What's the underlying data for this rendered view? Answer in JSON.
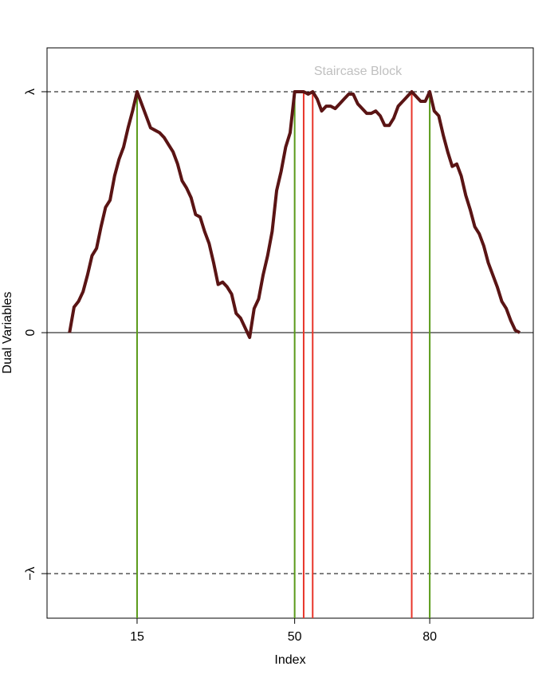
{
  "chart_data": {
    "type": "line",
    "x_label": "Index",
    "y_label": "Dual Variables",
    "annotation": "Staircase Block",
    "x": [
      0,
      1,
      2,
      3,
      4,
      5,
      6,
      7,
      8,
      9,
      10,
      11,
      12,
      13,
      14,
      15,
      16,
      17,
      18,
      19,
      20,
      21,
      22,
      23,
      24,
      25,
      26,
      27,
      28,
      29,
      30,
      31,
      32,
      33,
      34,
      35,
      36,
      37,
      38,
      39,
      40,
      41,
      42,
      43,
      44,
      45,
      46,
      47,
      48,
      49,
      50,
      51,
      52,
      53,
      54,
      55,
      56,
      57,
      58,
      59,
      60,
      61,
      62,
      63,
      64,
      65,
      66,
      67,
      68,
      69,
      70,
      71,
      72,
      73,
      74,
      75,
      76,
      77,
      78,
      79,
      80,
      81,
      82,
      83,
      84,
      85,
      86,
      87,
      88,
      89,
      90,
      91,
      92,
      93,
      94,
      95,
      96,
      97,
      98,
      99,
      100
    ],
    "series": [
      {
        "color": "#5a1414",
        "values": [
          0,
          0.106,
          0.13,
          0.17,
          0.24,
          0.32,
          0.35,
          0.44,
          0.52,
          0.55,
          0.65,
          0.72,
          0.77,
          0.85,
          0.92,
          1,
          0.95,
          0.9,
          0.85,
          0.84,
          0.83,
          0.81,
          0.78,
          0.75,
          0.7,
          0.63,
          0.6,
          0.56,
          0.49,
          0.48,
          0.42,
          0.37,
          0.29,
          0.2,
          0.21,
          0.19,
          0.16,
          0.08,
          0.06,
          0.02,
          -0.02,
          0.1,
          0.14,
          0.24,
          0.32,
          0.42,
          0.59,
          0.67,
          0.77,
          0.83,
          1,
          1,
          1,
          0.99,
          1,
          0.97,
          0.92,
          0.94,
          0.94,
          0.93,
          0.95,
          0.97,
          0.99,
          0.99,
          0.95,
          0.93,
          0.91,
          0.91,
          0.92,
          0.9,
          0.86,
          0.86,
          0.89,
          0.94,
          0.96,
          0.98,
          1,
          0.98,
          0.96,
          0.96,
          1,
          0.92,
          0.9,
          0.82,
          0.75,
          0.69,
          0.7,
          0.65,
          0.57,
          0.51,
          0.44,
          0.41,
          0.36,
          0.29,
          0.24,
          0.19,
          0.13,
          0.1,
          0.05,
          0.01,
          0
        ]
      }
    ],
    "vlines": [
      {
        "color": "#5a9a1a",
        "x": [
          15,
          50,
          80
        ]
      },
      {
        "color": "#e8352a",
        "x": [
          52,
          54,
          76
        ]
      }
    ],
    "xlim": [
      -5,
      103
    ],
    "xticks": [
      15,
      50,
      80
    ],
    "ylim": [
      -1.185,
      1.182
    ],
    "yticks": [
      {
        "value": 1,
        "label": "λ"
      },
      0,
      {
        "value": -1,
        "label": "−λ"
      }
    ]
  }
}
